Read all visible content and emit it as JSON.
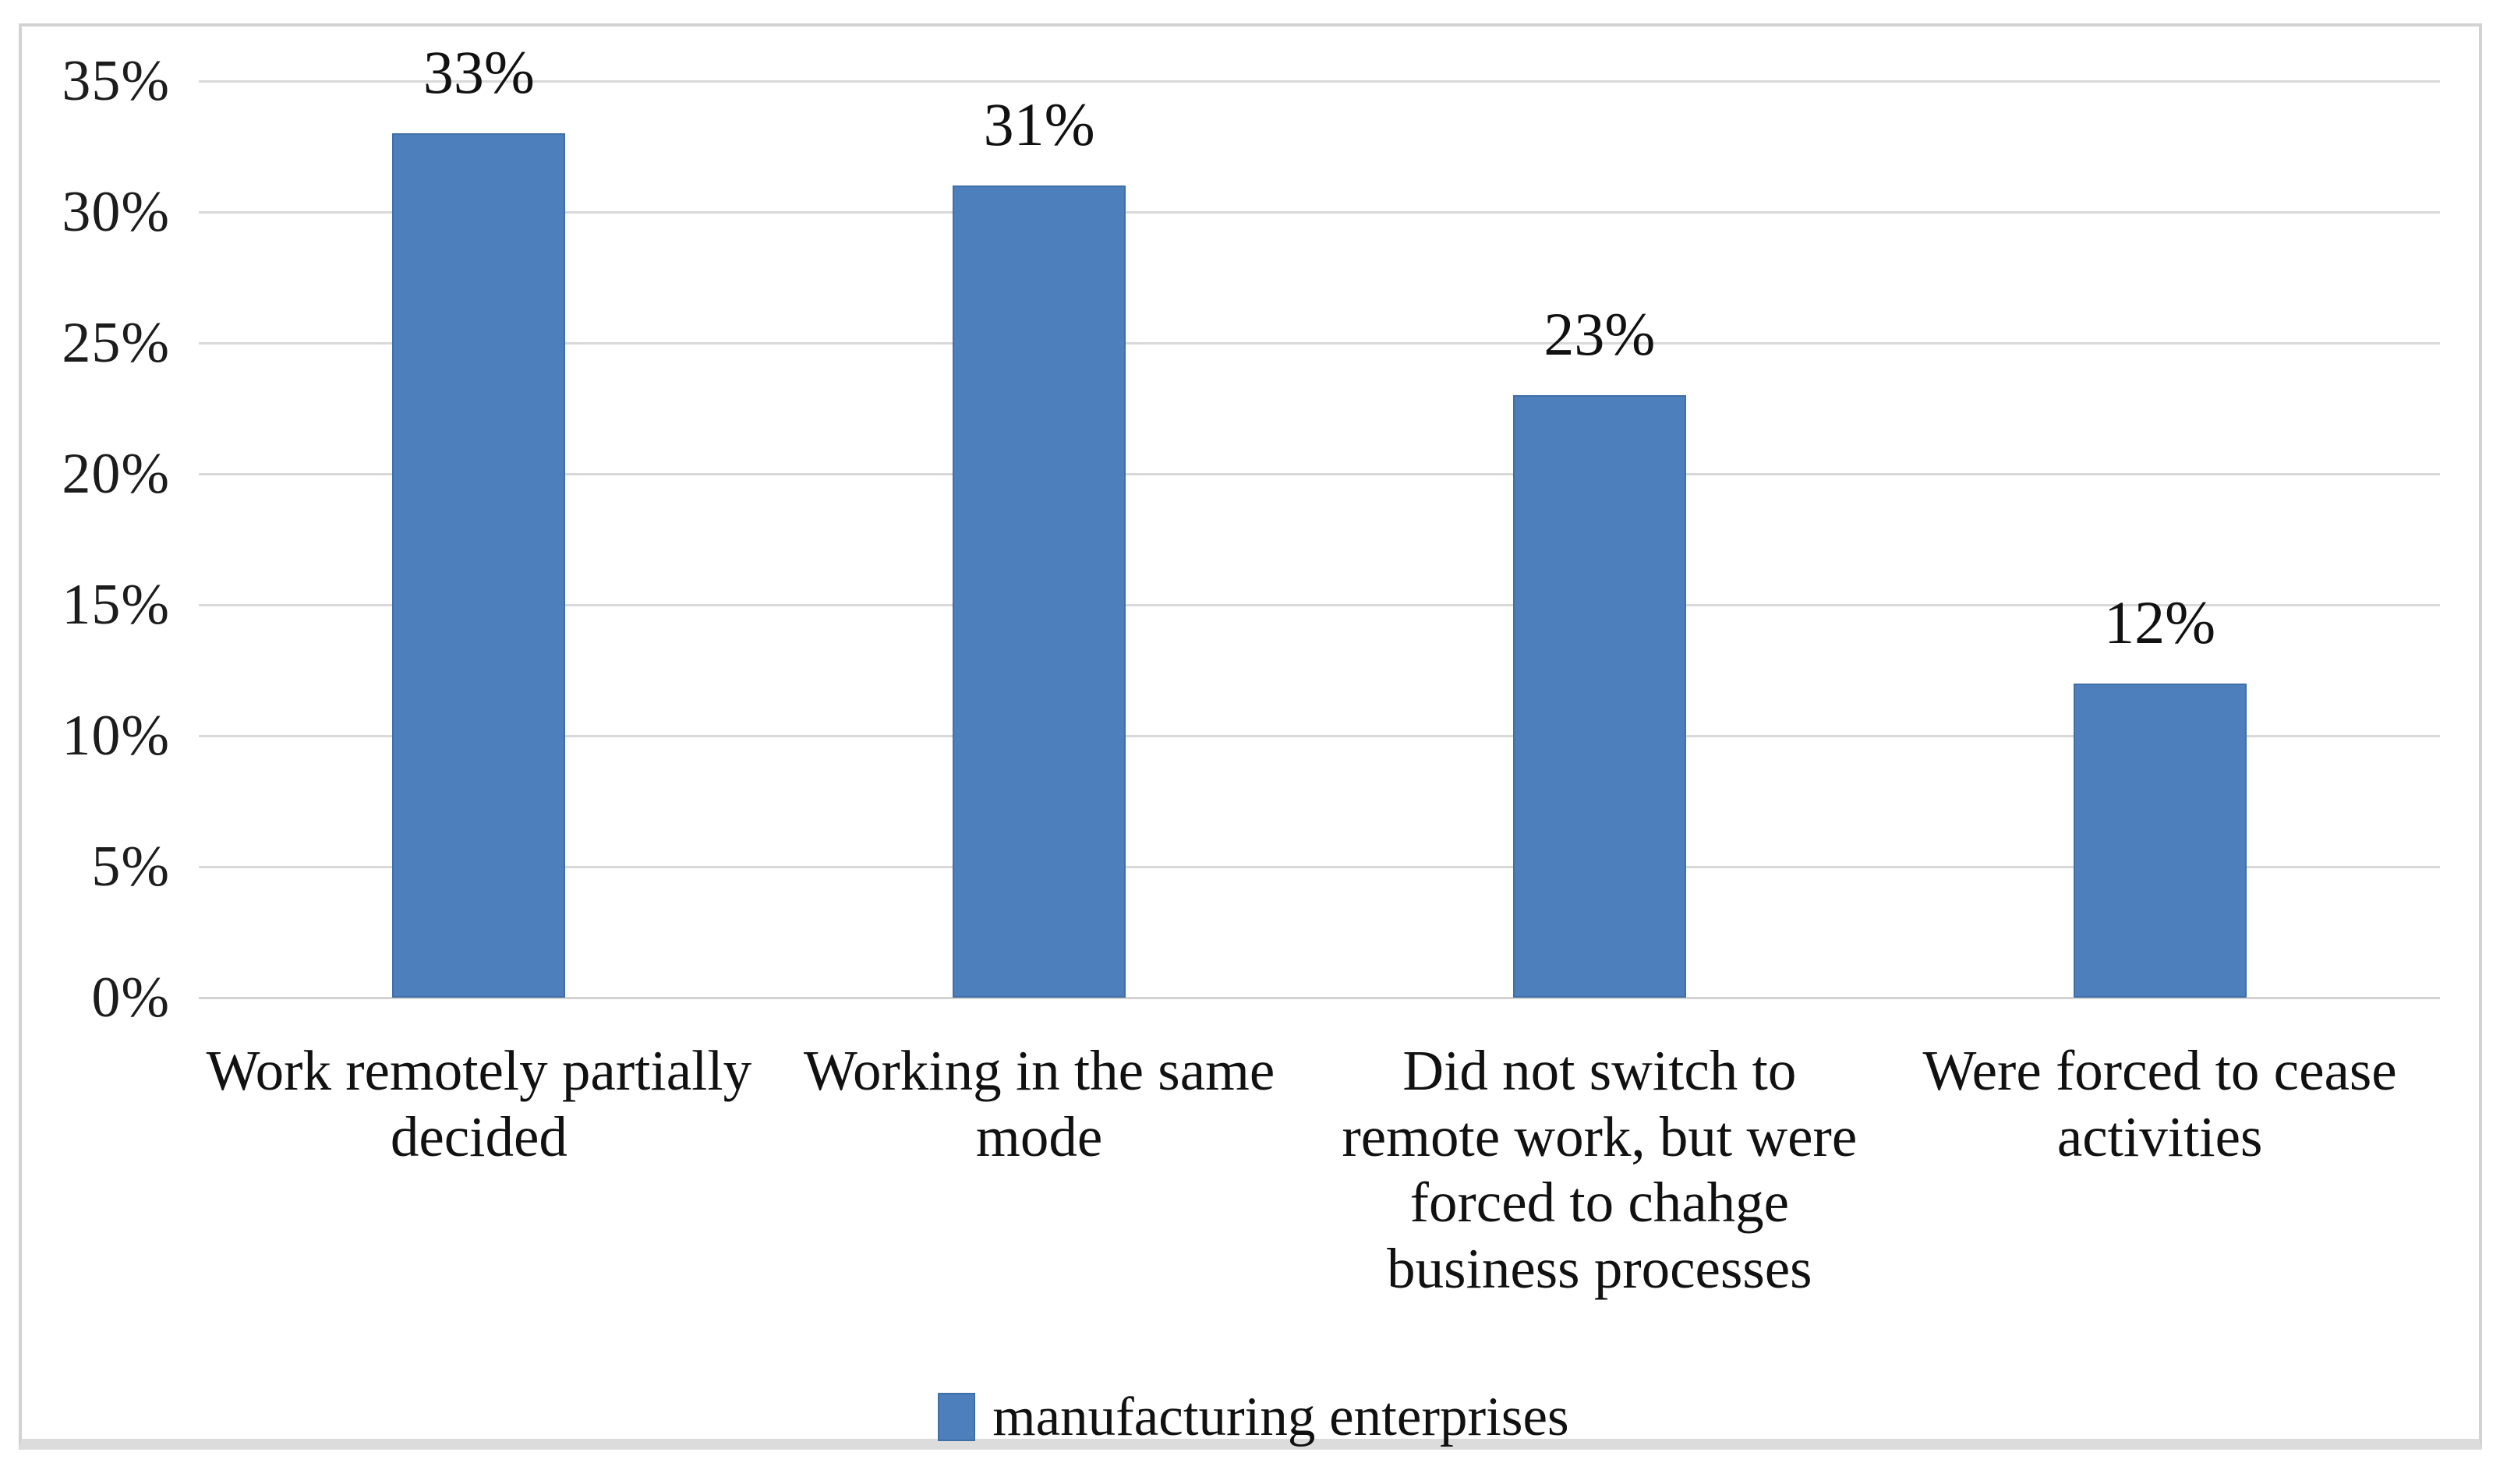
{
  "figure": {
    "background": "#ffffff",
    "frame_border_color": "#d2d2d2"
  },
  "chart_data": {
    "type": "bar",
    "title": "",
    "xlabel": "",
    "ylabel": "",
    "categories": [
      "Work remotely partially\ndecided",
      "Working in the same\nmode",
      "Did not switch to\nremote work, but were\nforced to chahge\nbusiness processes",
      "Were forced to cease\nactivities"
    ],
    "series": [
      {
        "name": "manufacturing enterprises",
        "values": [
          33,
          31,
          23,
          12
        ]
      }
    ],
    "value_labels": [
      "33%",
      "31%",
      "23%",
      "12%"
    ],
    "ylim": [
      0,
      35
    ],
    "yticks": [
      {
        "value": 0,
        "label": "0%"
      },
      {
        "value": 5,
        "label": "5%"
      },
      {
        "value": 10,
        "label": "10%"
      },
      {
        "value": 15,
        "label": "15%"
      },
      {
        "value": 20,
        "label": "20%"
      },
      {
        "value": 25,
        "label": "25%"
      },
      {
        "value": 30,
        "label": "30%"
      },
      {
        "value": 35,
        "label": "35%"
      }
    ],
    "grid": "horizontal",
    "gridline_color": "#d9d9d9",
    "baseline_color": "#d3d3d3",
    "bar_color": "#4c7fbc",
    "bar_border_color": "#3e6fa6",
    "legend_position": "bottom"
  },
  "legend": {
    "items": [
      {
        "label": "manufacturing enterprises",
        "color": "#4c7fbc",
        "border": "#3e6fa6"
      }
    ]
  }
}
